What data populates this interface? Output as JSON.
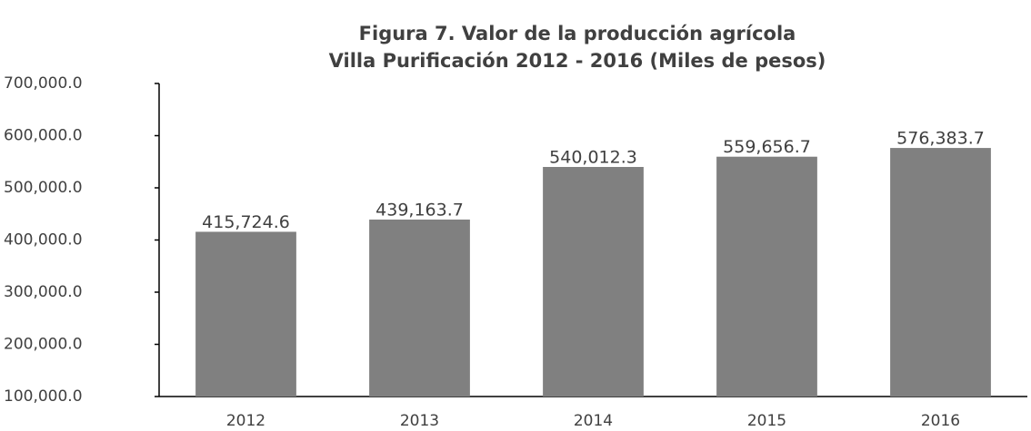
{
  "chart_data": {
    "type": "bar",
    "title": [
      "Figura 7. Valor de la producción agrícola",
      "Villa Purificación 2012 - 2016 (Miles de pesos)"
    ],
    "categories": [
      "2012",
      "2013",
      "2014",
      "2015",
      "2016"
    ],
    "values": [
      415724.6,
      439163.7,
      540012.3,
      559656.7,
      576383.7
    ],
    "value_labels": [
      "415,724.6",
      "439,163.7",
      "540,012.3",
      "559,656.7",
      "576,383.7"
    ],
    "color": "#808080",
    "ylim": [
      100000,
      700000
    ],
    "yticks": [
      {
        "value": 100000,
        "label": "100,000.0"
      },
      {
        "value": 200000,
        "label": "200,000.0"
      },
      {
        "value": 300000,
        "label": "300,000.0"
      },
      {
        "value": 400000,
        "label": "400,000.0"
      },
      {
        "value": 500000,
        "label": "500,000.0"
      },
      {
        "value": 600000,
        "label": "600,000.0"
      },
      {
        "value": 700000,
        "label": "700,000.0"
      }
    ],
    "grid": false
  }
}
